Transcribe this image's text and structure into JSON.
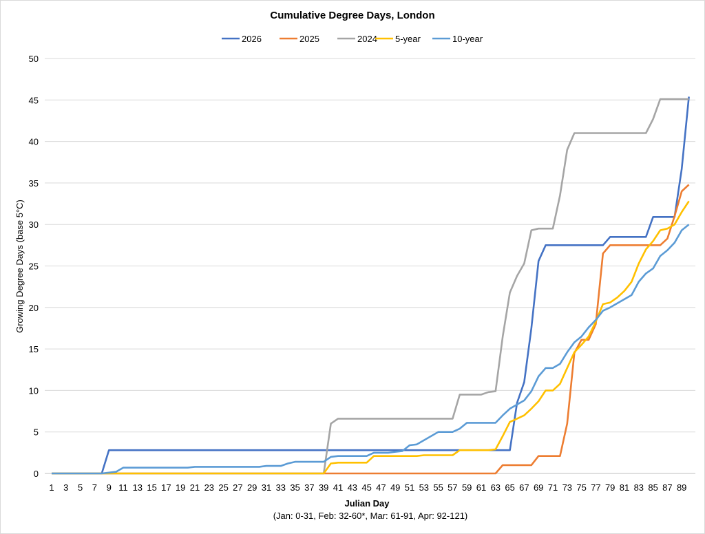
{
  "chart_data": {
    "type": "line",
    "title": "Cumulative Degree Days, London",
    "xlabel": "Julian Day",
    "xlabel_note": "(Jan: 0-31, Feb: 32-60*, Mar: 61-91, Apr: 92-121)",
    "ylabel": "Growing Degree Days (base 5°C)",
    "xlim": [
      1,
      90
    ],
    "ylim": [
      0,
      50
    ],
    "y_ticks": [
      0,
      5,
      10,
      15,
      20,
      25,
      30,
      35,
      40,
      45,
      50
    ],
    "x_ticks": [
      1,
      3,
      5,
      7,
      9,
      11,
      13,
      15,
      17,
      19,
      21,
      23,
      25,
      27,
      29,
      31,
      33,
      35,
      37,
      39,
      41,
      43,
      45,
      47,
      49,
      51,
      53,
      55,
      57,
      59,
      61,
      63,
      65,
      67,
      69,
      71,
      73,
      75,
      77,
      79,
      81,
      83,
      85,
      87,
      89
    ],
    "grid": "horizontal",
    "legend_position": "top",
    "series": [
      {
        "name": "2026",
        "color": "#4472C4",
        "values": [
          0,
          0,
          0,
          0,
          0,
          0,
          0,
          0,
          2.8,
          2.8,
          2.8,
          2.8,
          2.8,
          2.8,
          2.8,
          2.8,
          2.8,
          2.8,
          2.8,
          2.8,
          2.8,
          2.8,
          2.8,
          2.8,
          2.8,
          2.8,
          2.8,
          2.8,
          2.8,
          2.8,
          2.8,
          2.8,
          2.8,
          2.8,
          2.8,
          2.8,
          2.8,
          2.8,
          2.8,
          2.8,
          2.8,
          2.8,
          2.8,
          2.8,
          2.8,
          2.8,
          2.8,
          2.8,
          2.8,
          2.8,
          2.8,
          2.8,
          2.8,
          2.8,
          2.8,
          2.8,
          2.8,
          2.8,
          2.8,
          2.8,
          2.8,
          2.8,
          2.8,
          2.8,
          2.8,
          8.5,
          11,
          17.5,
          25.6,
          27.5,
          27.5,
          27.5,
          27.5,
          27.5,
          27.5,
          27.5,
          27.5,
          27.5,
          28.5,
          28.5,
          28.5,
          28.5,
          28.5,
          28.5,
          30.9,
          30.9,
          30.9,
          30.9,
          36.7,
          45.4
        ]
      },
      {
        "name": "2025",
        "color": "#ED7D31",
        "values": [
          0,
          0,
          0,
          0,
          0,
          0,
          0,
          0,
          0,
          0,
          0,
          0,
          0,
          0,
          0,
          0,
          0,
          0,
          0,
          0,
          0,
          0,
          0,
          0,
          0,
          0,
          0,
          0,
          0,
          0,
          0,
          0,
          0,
          0,
          0,
          0,
          0,
          0,
          0,
          0,
          0,
          0,
          0,
          0,
          0,
          0,
          0,
          0,
          0,
          0,
          0,
          0,
          0,
          0,
          0,
          0,
          0,
          0,
          0,
          0,
          0,
          0,
          0,
          1.0,
          1.0,
          1.0,
          1.0,
          1.0,
          2.1,
          2.1,
          2.1,
          2.1,
          6,
          14.5,
          16.1,
          16.1,
          18,
          26.5,
          27.5,
          27.5,
          27.5,
          27.5,
          27.5,
          27.5,
          27.5,
          27.5,
          28.3,
          31,
          34,
          34.8
        ]
      },
      {
        "name": "2024",
        "color": "#A5A5A5",
        "values": [
          0,
          0,
          0,
          0,
          0,
          0,
          0,
          0,
          0,
          0,
          0,
          0,
          0,
          0,
          0,
          0,
          0,
          0,
          0,
          0,
          0,
          0,
          0,
          0,
          0,
          0,
          0,
          0,
          0,
          0,
          0,
          0,
          0,
          0,
          0,
          0,
          0,
          0,
          0,
          6.0,
          6.6,
          6.6,
          6.6,
          6.6,
          6.6,
          6.6,
          6.6,
          6.6,
          6.6,
          6.6,
          6.6,
          6.6,
          6.6,
          6.6,
          6.6,
          6.6,
          6.6,
          9.5,
          9.5,
          9.5,
          9.5,
          9.8,
          9.9,
          16.5,
          21.8,
          23.8,
          25.3,
          29.3,
          29.5,
          29.5,
          29.5,
          33.5,
          39,
          41,
          41,
          41,
          41,
          41,
          41,
          41,
          41,
          41,
          41,
          41,
          42.7,
          45.1,
          45.1,
          45.1,
          45.1,
          45.1
        ]
      },
      {
        "name": "5-year",
        "color": "#FFC000",
        "values": [
          0,
          0,
          0,
          0,
          0,
          0,
          0,
          0,
          0,
          0,
          0,
          0,
          0,
          0,
          0,
          0,
          0,
          0,
          0,
          0,
          0,
          0,
          0,
          0,
          0,
          0,
          0,
          0,
          0,
          0,
          0,
          0,
          0,
          0,
          0,
          0,
          0,
          0,
          0,
          1.2,
          1.3,
          1.3,
          1.3,
          1.3,
          1.3,
          2.1,
          2.1,
          2.1,
          2.1,
          2.1,
          2.1,
          2.1,
          2.2,
          2.2,
          2.2,
          2.2,
          2.2,
          2.8,
          2.8,
          2.8,
          2.8,
          2.8,
          2.9,
          4.5,
          6.2,
          6.6,
          7.0,
          7.8,
          8.7,
          10.0,
          10.0,
          10.8,
          12.7,
          14.6,
          15.5,
          16.5,
          18.3,
          20.4,
          20.6,
          21.2,
          22.0,
          23.1,
          25.3,
          27,
          28,
          29.3,
          29.5,
          30,
          31.5,
          32.8
        ]
      },
      {
        "name": "10-year",
        "color": "#5B9BD5",
        "values": [
          0,
          0,
          0,
          0,
          0,
          0,
          0,
          0,
          0.1,
          0.2,
          0.7,
          0.7,
          0.7,
          0.7,
          0.7,
          0.7,
          0.7,
          0.7,
          0.7,
          0.7,
          0.8,
          0.8,
          0.8,
          0.8,
          0.8,
          0.8,
          0.8,
          0.8,
          0.8,
          0.8,
          0.9,
          0.9,
          0.9,
          1.2,
          1.4,
          1.4,
          1.4,
          1.4,
          1.4,
          2.0,
          2.1,
          2.1,
          2.1,
          2.1,
          2.1,
          2.5,
          2.5,
          2.5,
          2.6,
          2.7,
          3.4,
          3.5,
          4.0,
          4.5,
          5.0,
          5.0,
          5.0,
          5.4,
          6.1,
          6.1,
          6.1,
          6.1,
          6.1,
          7.0,
          7.8,
          8.3,
          8.8,
          9.9,
          11.7,
          12.7,
          12.7,
          13.2,
          14.6,
          15.8,
          16.5,
          17.6,
          18.5,
          19.6,
          20.0,
          20.5,
          21.0,
          21.5,
          23.1,
          24.1,
          24.7,
          26.2,
          26.9,
          27.8,
          29.3,
          30.0
        ]
      }
    ]
  }
}
